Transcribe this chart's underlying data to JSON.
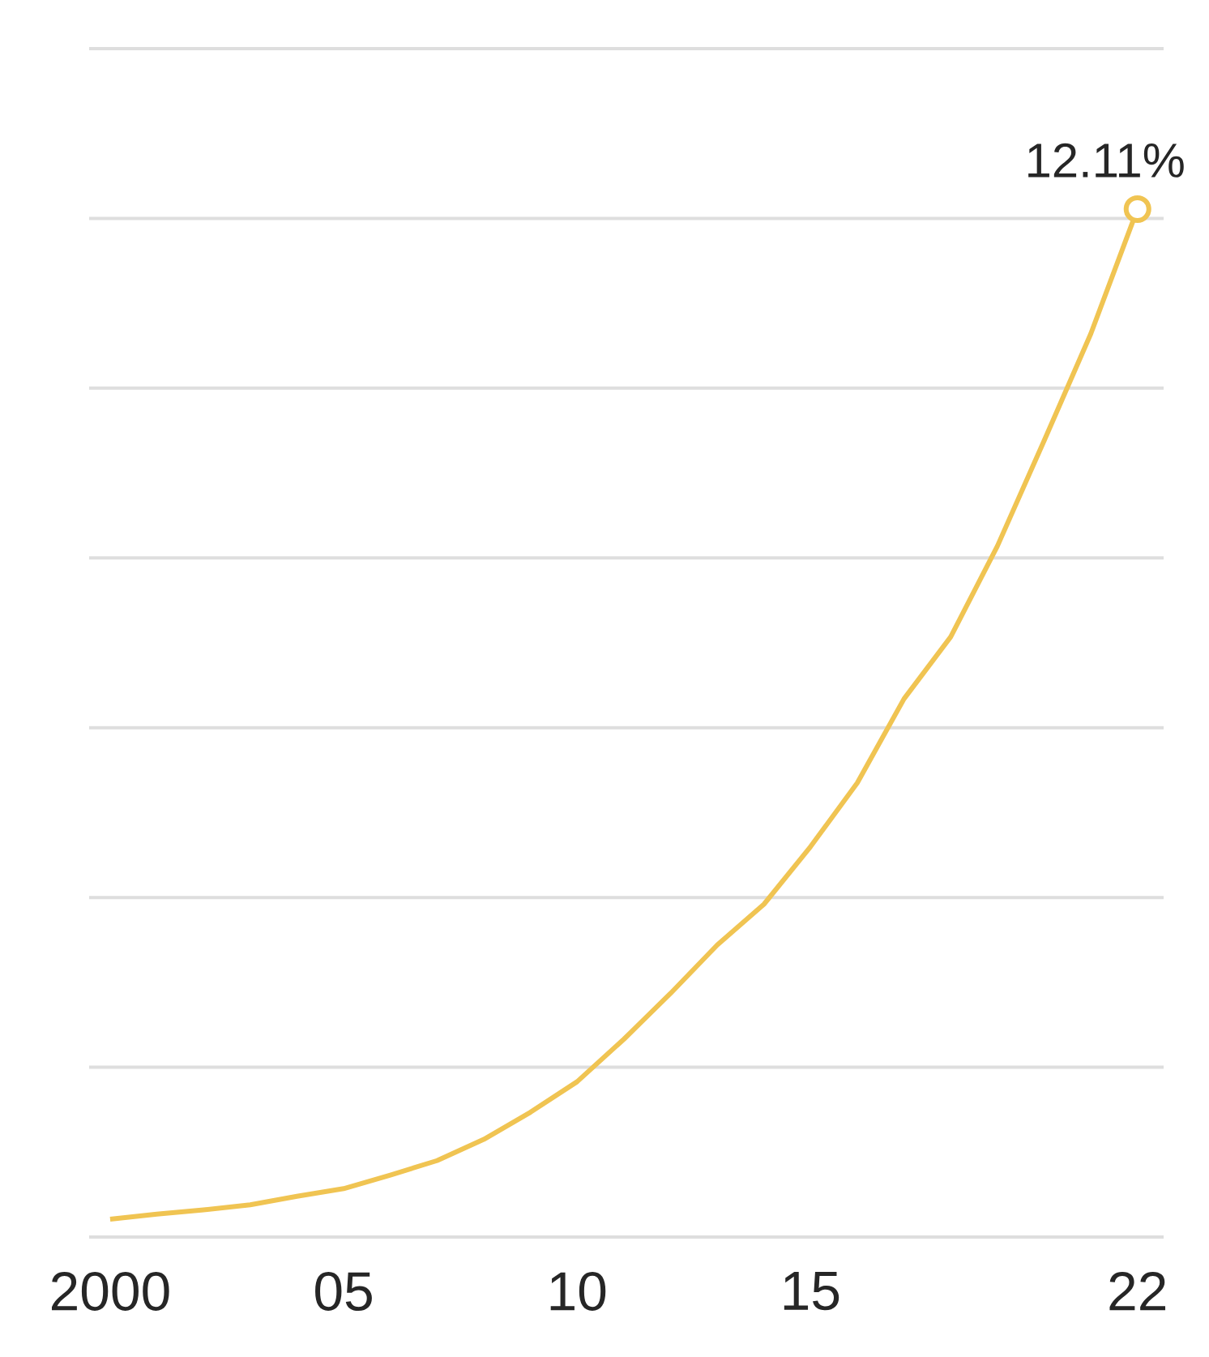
{
  "chart_data": {
    "type": "line",
    "x": [
      2000,
      2001,
      2002,
      2003,
      2004,
      2005,
      2006,
      2007,
      2008,
      2009,
      2010,
      2011,
      2012,
      2013,
      2014,
      2015,
      2016,
      2017,
      2018,
      2019,
      2020,
      2021,
      2022
    ],
    "series": [
      {
        "color": "#f0c452",
        "values": [
          0.21,
          0.27,
          0.32,
          0.38,
          0.48,
          0.57,
          0.73,
          0.9,
          1.15,
          1.47,
          1.83,
          2.33,
          2.87,
          3.44,
          3.92,
          4.6,
          5.35,
          6.34,
          7.07,
          8.14,
          9.38,
          10.64,
          12.11
        ],
        "value_labels": [
          null,
          null,
          null,
          null,
          null,
          null,
          null,
          null,
          null,
          null,
          null,
          null,
          null,
          null,
          null,
          null,
          null,
          null,
          null,
          null,
          null,
          null,
          "12.11%"
        ]
      }
    ],
    "xlim": [
      1999.55,
      2022.56
    ],
    "xticks": [
      {
        "value": 2000,
        "label": "2000"
      },
      {
        "value": 2005,
        "label": "05"
      },
      {
        "value": 2010,
        "label": "10"
      },
      {
        "value": 2015,
        "label": "15"
      },
      {
        "value": 2022,
        "label": "22"
      }
    ],
    "ylim": [
      0,
      14
    ],
    "yticks": [
      {
        "value": 0,
        "label": null
      },
      {
        "value": 2,
        "label": null
      },
      {
        "value": 4,
        "label": null
      },
      {
        "value": 6,
        "label": null
      },
      {
        "value": 8,
        "label": null
      },
      {
        "value": 10,
        "label": null
      },
      {
        "value": 12,
        "label": null
      },
      {
        "value": 14,
        "label": null
      }
    ],
    "grid": "y",
    "tick_labels": "x",
    "line_style": "solid"
  }
}
